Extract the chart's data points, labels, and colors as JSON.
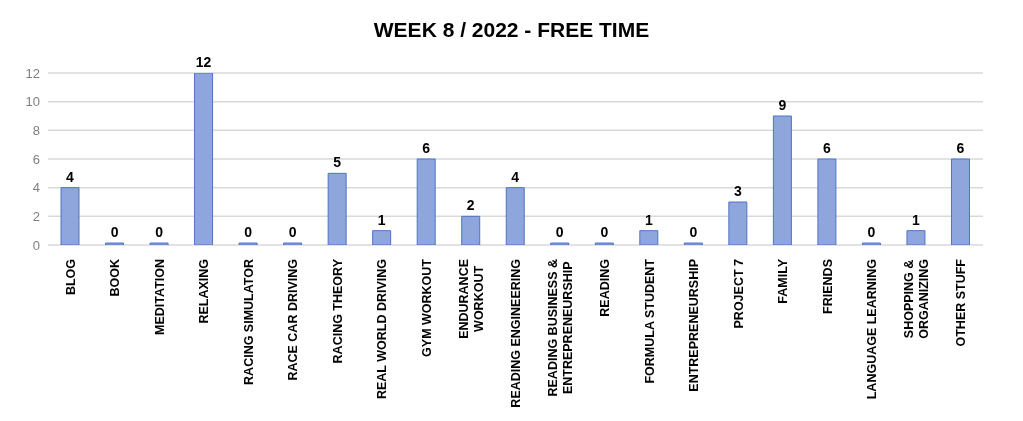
{
  "chart_data": {
    "type": "bar",
    "title": "WEEK 8 / 2022 - FREE TIME",
    "categories": [
      "BLOG",
      "BOOK",
      "MEDITATION",
      "RELAXING",
      "RACING SIMULATOR",
      "RACE CAR DRIVING",
      "RACING THEORY",
      "REAL WORLD DRIVING",
      "GYM WORKOUT",
      "ENDURANCE\nWORKOUT",
      "READING ENGINEERING",
      "READING BUSINESS &\nENTREPRENEURSHIP",
      "READING",
      "FORMULA STUDENT",
      "ENTREPRENEURSHIP",
      "PROJECT 7",
      "FAMILY",
      "FRIENDS",
      "LANGUAGE LEARNING",
      "SHOPPING &\nORGANIZING",
      "OTHER STUFF"
    ],
    "values": [
      4,
      0,
      0,
      12,
      0,
      0,
      5,
      1,
      6,
      2,
      4,
      0,
      0,
      1,
      0,
      3,
      9,
      6,
      0,
      1,
      6
    ],
    "color": "#8fa6dd",
    "ylim": [
      0,
      12
    ],
    "yticks": [
      0,
      2,
      4,
      6,
      8,
      10,
      12
    ],
    "grid": "y",
    "data_labels": true
  }
}
